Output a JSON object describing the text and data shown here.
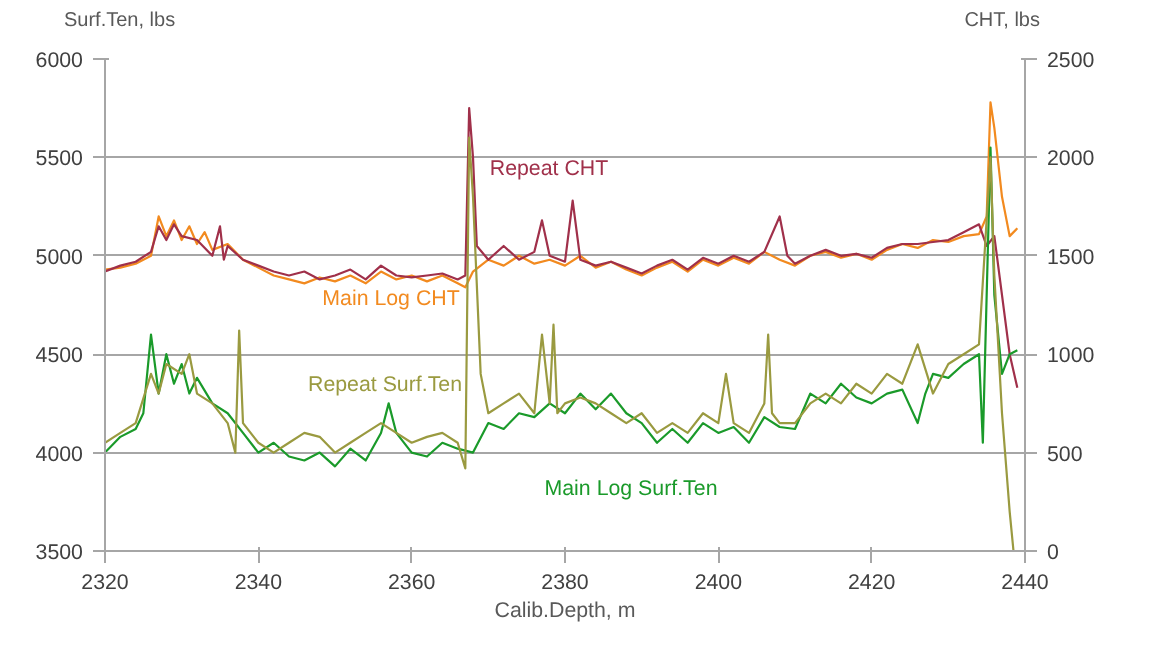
{
  "chart_data": {
    "type": "line",
    "xlabel": "Calib.Depth, m",
    "ylabel": "Surf.Ten, lbs",
    "y2label": "CHT, lbs",
    "xlim": [
      2320,
      2440
    ],
    "xticks": [
      2320,
      2340,
      2360,
      2380,
      2400,
      2420,
      2440
    ],
    "ylim": [
      3500,
      6000
    ],
    "yticks": [
      3500,
      4000,
      4500,
      5000,
      5500,
      6000
    ],
    "y2lim": [
      0,
      2500
    ],
    "y2ticks": [
      0,
      500,
      1000,
      1500,
      2000,
      2500
    ],
    "grid": "y",
    "series": [
      {
        "name": "Main Log CHT",
        "color": "#f28a1f",
        "axis": "y2",
        "x": [
          2320,
          2322,
          2324,
          2326,
          2327,
          2328,
          2329,
          2330,
          2331,
          2332,
          2333,
          2334,
          2336,
          2338,
          2340,
          2342,
          2344,
          2346,
          2348,
          2350,
          2352,
          2354,
          2356,
          2358,
          2360,
          2362,
          2364,
          2366,
          2367,
          2368,
          2370,
          2372,
          2374,
          2376,
          2378,
          2380,
          2382,
          2384,
          2386,
          2388,
          2390,
          2392,
          2394,
          2396,
          2398,
          2400,
          2402,
          2404,
          2406,
          2408,
          2410,
          2412,
          2414,
          2416,
          2418,
          2420,
          2422,
          2424,
          2426,
          2428,
          2430,
          2432,
          2434,
          2435,
          2435.5,
          2436,
          2437,
          2438,
          2439
        ],
        "values": [
          1430,
          1440,
          1460,
          1500,
          1700,
          1600,
          1680,
          1580,
          1650,
          1560,
          1620,
          1530,
          1560,
          1480,
          1440,
          1400,
          1380,
          1360,
          1390,
          1370,
          1400,
          1360,
          1420,
          1380,
          1400,
          1370,
          1400,
          1360,
          1340,
          1420,
          1480,
          1450,
          1500,
          1460,
          1480,
          1450,
          1500,
          1440,
          1470,
          1430,
          1400,
          1440,
          1470,
          1420,
          1480,
          1450,
          1490,
          1460,
          1520,
          1480,
          1450,
          1500,
          1520,
          1490,
          1510,
          1480,
          1530,
          1560,
          1540,
          1580,
          1570,
          1600,
          1610,
          1700,
          2280,
          2150,
          1800,
          1600,
          1640
        ]
      },
      {
        "name": "Repeat CHT",
        "color": "#a0304a",
        "axis": "y2",
        "x": [
          2320,
          2322,
          2324,
          2326,
          2327,
          2328,
          2329,
          2330,
          2332,
          2334,
          2335,
          2335.5,
          2336,
          2338,
          2340,
          2342,
          2344,
          2346,
          2348,
          2350,
          2352,
          2354,
          2356,
          2358,
          2360,
          2362,
          2364,
          2366,
          2367,
          2367.5,
          2368,
          2368.5,
          2370,
          2372,
          2374,
          2376,
          2377,
          2378,
          2380,
          2381,
          2382,
          2384,
          2386,
          2388,
          2390,
          2392,
          2394,
          2396,
          2398,
          2400,
          2402,
          2404,
          2406,
          2408,
          2409,
          2410,
          2412,
          2414,
          2416,
          2418,
          2420,
          2422,
          2424,
          2426,
          2428,
          2430,
          2432,
          2434,
          2435,
          2436,
          2437,
          2438,
          2439
        ],
        "values": [
          1420,
          1450,
          1470,
          1520,
          1650,
          1580,
          1660,
          1600,
          1580,
          1500,
          1650,
          1480,
          1550,
          1480,
          1450,
          1420,
          1400,
          1420,
          1380,
          1400,
          1430,
          1380,
          1450,
          1400,
          1390,
          1400,
          1410,
          1380,
          1400,
          2250,
          2000,
          1550,
          1480,
          1550,
          1480,
          1520,
          1680,
          1500,
          1470,
          1780,
          1480,
          1450,
          1470,
          1440,
          1410,
          1450,
          1480,
          1430,
          1490,
          1460,
          1500,
          1470,
          1520,
          1700,
          1500,
          1460,
          1500,
          1530,
          1500,
          1510,
          1490,
          1540,
          1560,
          1560,
          1570,
          1580,
          1620,
          1660,
          1550,
          1600,
          1300,
          1000,
          830
        ]
      },
      {
        "name": "Main Log Surf.Ten",
        "color": "#1a9a2a",
        "x": [
          2320,
          2322,
          2324,
          2325,
          2326,
          2327,
          2328,
          2329,
          2330,
          2331,
          2332,
          2334,
          2336,
          2338,
          2340,
          2342,
          2344,
          2346,
          2348,
          2350,
          2352,
          2354,
          2356,
          2357,
          2358,
          2360,
          2362,
          2364,
          2366,
          2368,
          2370,
          2372,
          2374,
          2376,
          2378,
          2380,
          2382,
          2384,
          2386,
          2388,
          2390,
          2392,
          2394,
          2396,
          2398,
          2400,
          2402,
          2404,
          2406,
          2408,
          2410,
          2412,
          2414,
          2416,
          2418,
          2420,
          2422,
          2424,
          2426,
          2427,
          2428,
          2430,
          2432,
          2434,
          2434.5,
          2435.5,
          2436,
          2437,
          2438,
          2439
        ],
        "values": [
          4000,
          4080,
          4120,
          4200,
          4600,
          4300,
          4500,
          4350,
          4450,
          4300,
          4380,
          4250,
          4200,
          4100,
          4000,
          4050,
          3980,
          3960,
          4000,
          3930,
          4020,
          3960,
          4100,
          4250,
          4100,
          4000,
          3980,
          4050,
          4020,
          4000,
          4150,
          4120,
          4200,
          4180,
          4250,
          4200,
          4300,
          4220,
          4300,
          4200,
          4150,
          4050,
          4120,
          4050,
          4150,
          4100,
          4130,
          4050,
          4180,
          4130,
          4120,
          4300,
          4250,
          4350,
          4280,
          4250,
          4300,
          4320,
          4150,
          4300,
          4400,
          4380,
          4450,
          4500,
          4050,
          5550,
          4800,
          4400,
          4500,
          4520
        ]
      },
      {
        "name": "Repeat Surf.Ten",
        "color": "#9a9a40",
        "x": [
          2320,
          2322,
          2324,
          2326,
          2327,
          2328,
          2330,
          2331,
          2332,
          2334,
          2336,
          2337,
          2337.5,
          2338,
          2340,
          2342,
          2344,
          2346,
          2348,
          2350,
          2352,
          2354,
          2356,
          2358,
          2360,
          2362,
          2364,
          2366,
          2367,
          2367.5,
          2368,
          2369,
          2370,
          2372,
          2374,
          2376,
          2377,
          2378,
          2378.5,
          2379,
          2380,
          2382,
          2384,
          2386,
          2388,
          2390,
          2392,
          2394,
          2396,
          2398,
          2400,
          2401,
          2402,
          2404,
          2406,
          2406.5,
          2407,
          2408,
          2410,
          2412,
          2414,
          2416,
          2418,
          2420,
          2422,
          2424,
          2426,
          2428,
          2430,
          2432,
          2434,
          2435.5,
          2436,
          2437,
          2438,
          2438.5
        ],
        "values": [
          4050,
          4100,
          4150,
          4400,
          4300,
          4450,
          4400,
          4500,
          4300,
          4250,
          4150,
          4000,
          4620,
          4150,
          4050,
          4000,
          4050,
          4100,
          4080,
          4000,
          4050,
          4100,
          4150,
          4100,
          4050,
          4080,
          4100,
          4050,
          3920,
          5600,
          5300,
          4400,
          4200,
          4250,
          4300,
          4200,
          4600,
          4250,
          4650,
          4200,
          4250,
          4280,
          4250,
          4200,
          4150,
          4200,
          4100,
          4150,
          4100,
          4200,
          4150,
          4400,
          4150,
          4100,
          4250,
          4600,
          4200,
          4150,
          4150,
          4250,
          4300,
          4250,
          4350,
          4300,
          4400,
          4350,
          4550,
          4300,
          4450,
          4500,
          4550,
          5500,
          4900,
          4200,
          3700,
          3500
        ]
      }
    ]
  }
}
